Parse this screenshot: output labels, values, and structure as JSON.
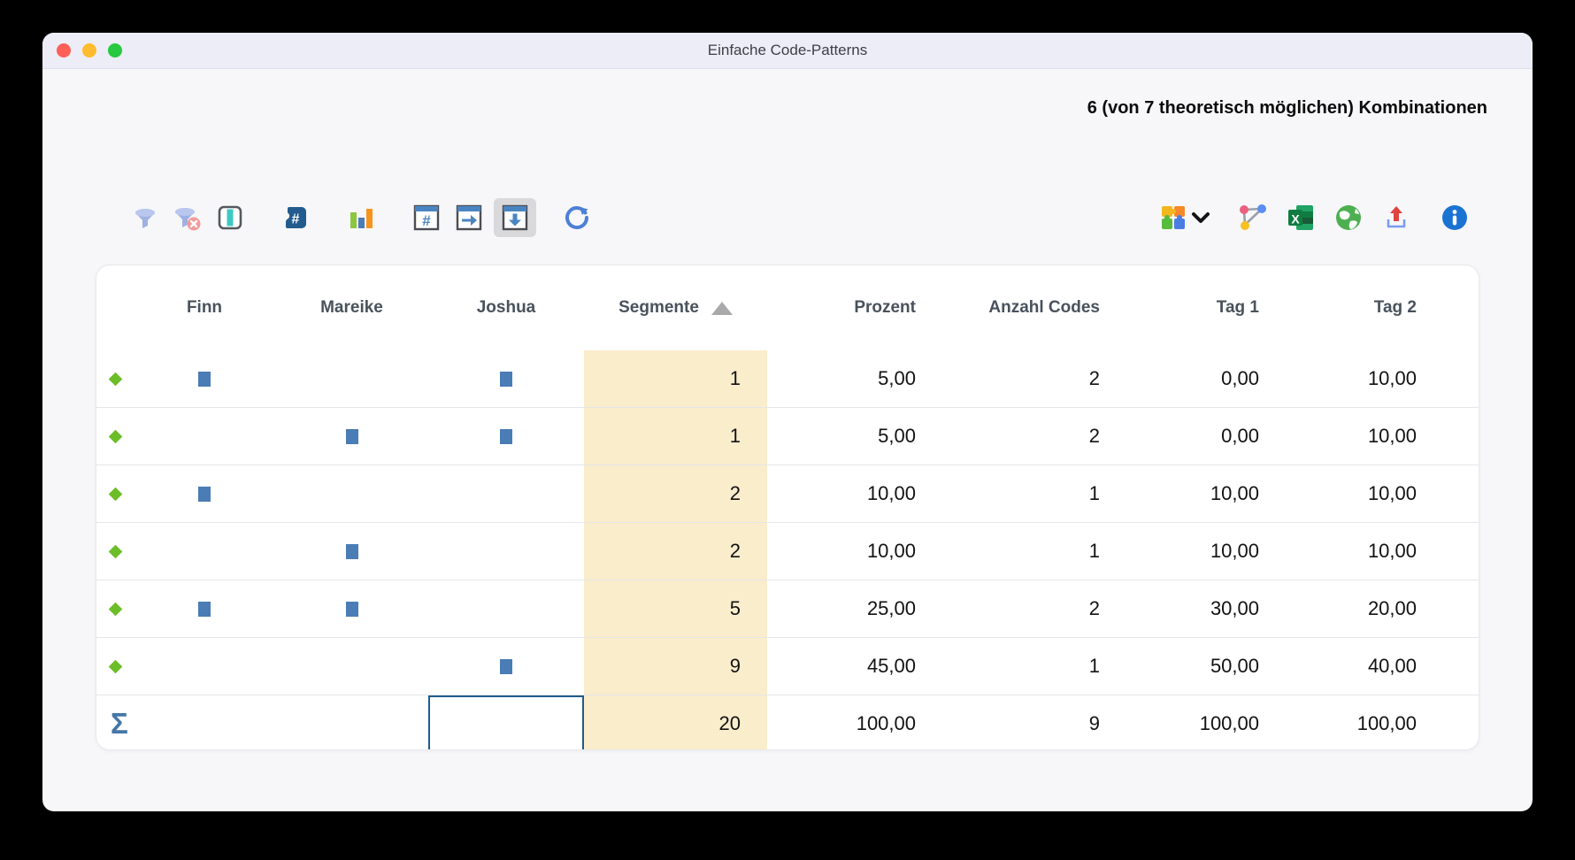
{
  "window": {
    "title": "Einfache Code-Patterns"
  },
  "titlebar_buttons": [
    "close-button",
    "minimize-button",
    "zoom-button"
  ],
  "summary": {
    "combinations_label": "6 (von 7 theoretisch möglichen) Kombinationen"
  },
  "toolbar": {
    "left_icons": [
      "filter-icon",
      "filter-remove-icon",
      "columns-select-icon",
      "hash-code-icon",
      "bar-chart-icon",
      "table-count-icon",
      "table-row-sum-icon",
      "table-column-sum-icon",
      "refresh-icon"
    ],
    "selected_icon": "table-column-sum-icon",
    "right_icons": [
      "puzzle-icon",
      "chevron-down-icon",
      "code-map-icon",
      "excel-icon",
      "globe-icon",
      "export-icon",
      "info-icon"
    ]
  },
  "table": {
    "person_columns": [
      "Finn",
      "Mareike",
      "Joshua"
    ],
    "numeric_columns": [
      "Segmente",
      "Prozent",
      "Anzahl Codes",
      "Tag 1",
      "Tag 2"
    ],
    "sort": {
      "column": "Segmente",
      "direction": "asc"
    },
    "rows": [
      {
        "marks": [
          1,
          0,
          1
        ],
        "values": [
          "1",
          "5,00",
          "2",
          "0,00",
          "10,00"
        ]
      },
      {
        "marks": [
          0,
          1,
          1
        ],
        "values": [
          "1",
          "5,00",
          "2",
          "0,00",
          "10,00"
        ]
      },
      {
        "marks": [
          1,
          0,
          0
        ],
        "values": [
          "2",
          "10,00",
          "1",
          "10,00",
          "10,00"
        ]
      },
      {
        "marks": [
          0,
          1,
          0
        ],
        "values": [
          "2",
          "10,00",
          "1",
          "10,00",
          "10,00"
        ]
      },
      {
        "marks": [
          1,
          1,
          0
        ],
        "values": [
          "5",
          "25,00",
          "2",
          "30,00",
          "20,00"
        ]
      },
      {
        "marks": [
          0,
          0,
          1
        ],
        "values": [
          "9",
          "45,00",
          "1",
          "50,00",
          "40,00"
        ]
      }
    ],
    "sum_row": {
      "symbol": "Σ",
      "values": [
        "20",
        "100,00",
        "9",
        "100,00",
        "100,00"
      ],
      "selected_cell_column": "Joshua"
    }
  },
  "colors": {
    "segmente_column_bg": "#faedcc",
    "pattern_diamond": "#6cbe28",
    "code_square": "#4a7cb5",
    "selected_cell_border": "#1f5c8c",
    "sum_symbol": "#4377a8",
    "titlebar_bg": "#ecedf6",
    "body_bg": "#f7f7f9"
  }
}
